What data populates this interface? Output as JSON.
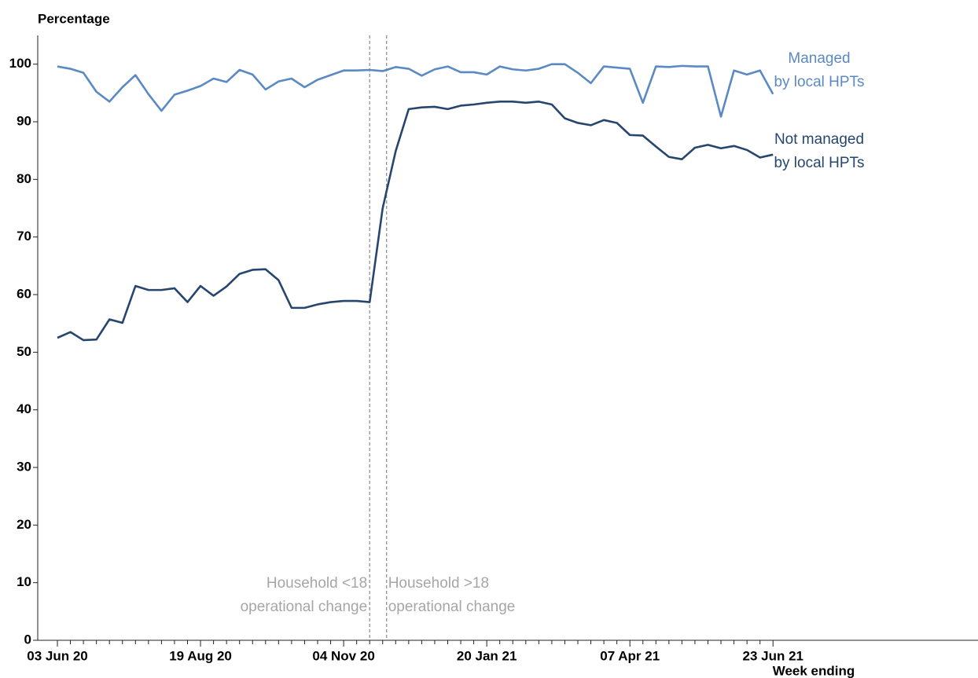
{
  "chart_data": {
    "type": "line",
    "y_label": "Percentage",
    "x_label": "Week ending",
    "categories": [
      "03 Jun 20",
      null,
      null,
      null,
      null,
      null,
      null,
      null,
      null,
      null,
      null,
      "19 Aug 20",
      null,
      null,
      null,
      null,
      null,
      null,
      null,
      null,
      null,
      null,
      "04 Nov 20",
      null,
      null,
      null,
      null,
      null,
      null,
      null,
      null,
      null,
      null,
      "20 Jan 21",
      null,
      null,
      null,
      null,
      null,
      null,
      null,
      null,
      null,
      null,
      "07 Apr 21",
      null,
      null,
      null,
      null,
      null,
      null,
      null,
      null,
      null,
      null,
      "23 Jun 21"
    ],
    "series": [
      {
        "name": "Managed\nby local HPTs",
        "color": "#5b89c4",
        "values": [
          99.6,
          99.2,
          98.5,
          95.2,
          93.5,
          96,
          98.1,
          94.8,
          91.9,
          94.7,
          95.4,
          96.2,
          97.5,
          96.9,
          99,
          98.2,
          95.6,
          97,
          97.5,
          96,
          97.3,
          98.1,
          98.9,
          98.9,
          99,
          98.8,
          99.5,
          99.2,
          98,
          99.1,
          99.6,
          98.6,
          98.6,
          98.2,
          99.6,
          99.1,
          98.9,
          99.2,
          100,
          100,
          98.5,
          96.7,
          99.6,
          99.4,
          99.2,
          93.3,
          99.6,
          99.5,
          99.7,
          99.6,
          99.6,
          90.9,
          98.9,
          98.2,
          98.9,
          94.8
        ]
      },
      {
        "name": "Not managed\nby local HPTs",
        "color": "#26466f",
        "values": [
          52.5,
          53.5,
          52.1,
          52.2,
          55.7,
          55.1,
          61.5,
          60.8,
          60.8,
          61.1,
          58.7,
          61.5,
          59.8,
          61.4,
          63.6,
          64.3,
          64.4,
          62.5,
          57.7,
          57.7,
          58.3,
          58.7,
          58.9,
          58.9,
          58.7,
          75,
          84.9,
          92.2,
          92.5,
          92.6,
          92.2,
          92.8,
          93,
          93.3,
          93.5,
          93.5,
          93.3,
          93.5,
          93,
          90.6,
          89.8,
          89.4,
          90.3,
          89.8,
          87.7,
          87.6,
          85.7,
          83.9,
          83.5,
          85.5,
          86,
          85.4,
          85.8,
          85.1,
          83.8,
          84.3
        ]
      }
    ],
    "annotations": [
      {
        "text": "Household <18\noperational change",
        "x": 24,
        "side": "left"
      },
      {
        "text": "Household >18\noperational change",
        "x": 25.3,
        "side": "right"
      }
    ],
    "ylim": [
      0,
      105
    ],
    "yticks": [
      0,
      10,
      20,
      30,
      40,
      50,
      60,
      70,
      80,
      90,
      100
    ],
    "grid": false
  }
}
